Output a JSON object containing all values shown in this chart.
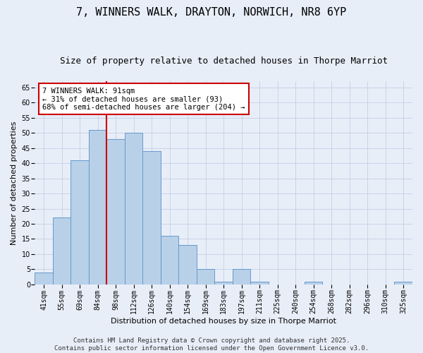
{
  "title": "7, WINNERS WALK, DRAYTON, NORWICH, NR8 6YP",
  "subtitle": "Size of property relative to detached houses in Thorpe Marriot",
  "xlabel": "Distribution of detached houses by size in Thorpe Marriot",
  "ylabel": "Number of detached properties",
  "categories": [
    "41sqm",
    "55sqm",
    "69sqm",
    "84sqm",
    "98sqm",
    "112sqm",
    "126sqm",
    "140sqm",
    "154sqm",
    "169sqm",
    "183sqm",
    "197sqm",
    "211sqm",
    "225sqm",
    "240sqm",
    "254sqm",
    "268sqm",
    "282sqm",
    "296sqm",
    "310sqm",
    "325sqm"
  ],
  "values": [
    4,
    22,
    41,
    51,
    48,
    50,
    44,
    16,
    13,
    5,
    1,
    5,
    1,
    0,
    0,
    1,
    0,
    0,
    0,
    0,
    1
  ],
  "bar_color": "#b8d0e8",
  "bar_edge_color": "#6699cc",
  "vline_x": 3.5,
  "vline_color": "#cc0000",
  "annotation_text": "7 WINNERS WALK: 91sqm\n← 31% of detached houses are smaller (93)\n68% of semi-detached houses are larger (204) →",
  "annotation_box_color": "#ffffff",
  "annotation_box_edgecolor": "#cc0000",
  "ylim": [
    0,
    67
  ],
  "yticks": [
    0,
    5,
    10,
    15,
    20,
    25,
    30,
    35,
    40,
    45,
    50,
    55,
    60,
    65
  ],
  "grid_color": "#c8d4e8",
  "background_color": "#e8eef8",
  "footer": "Contains HM Land Registry data © Crown copyright and database right 2025.\nContains public sector information licensed under the Open Government Licence v3.0.",
  "title_fontsize": 11,
  "subtitle_fontsize": 9,
  "label_fontsize": 8,
  "tick_fontsize": 7,
  "footer_fontsize": 6.5,
  "annot_fontsize": 7.5
}
